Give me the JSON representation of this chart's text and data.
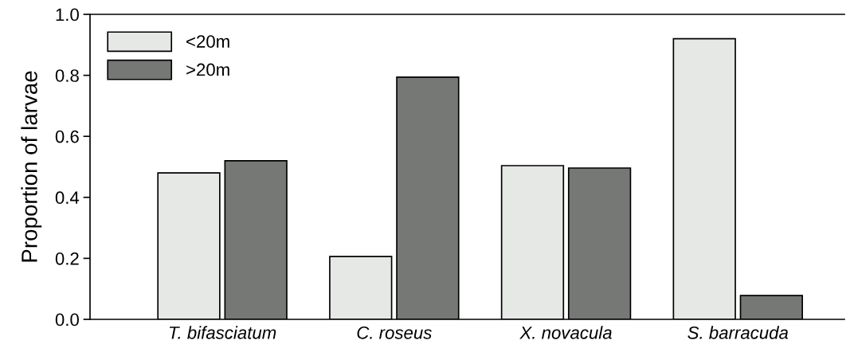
{
  "chart_data": {
    "type": "bar",
    "ylabel": "Proportion of larvae",
    "categories": [
      "T. bifasciatum",
      "C. roseus",
      "X. novacula",
      "S. barracuda"
    ],
    "series": [
      {
        "name": "<20m",
        "color": "#e6e8e6",
        "values": [
          0.48,
          0.206,
          0.504,
          0.92
        ]
      },
      {
        "name": ">20m",
        "color": "#767876",
        "values": [
          0.52,
          0.794,
          0.496,
          0.078
        ]
      }
    ],
    "ylim": [
      0,
      1.0
    ],
    "yticks": [
      {
        "value": 0,
        "label": "0.0"
      },
      {
        "value": 0.2,
        "label": "0.2"
      },
      {
        "value": 0.4,
        "label": "0.4"
      },
      {
        "value": 0.6,
        "label": "0.6"
      },
      {
        "value": 0.8,
        "label": "0.8"
      },
      {
        "value": 1.0,
        "label": "1.0"
      }
    ],
    "grid": false,
    "legend": "top left"
  }
}
